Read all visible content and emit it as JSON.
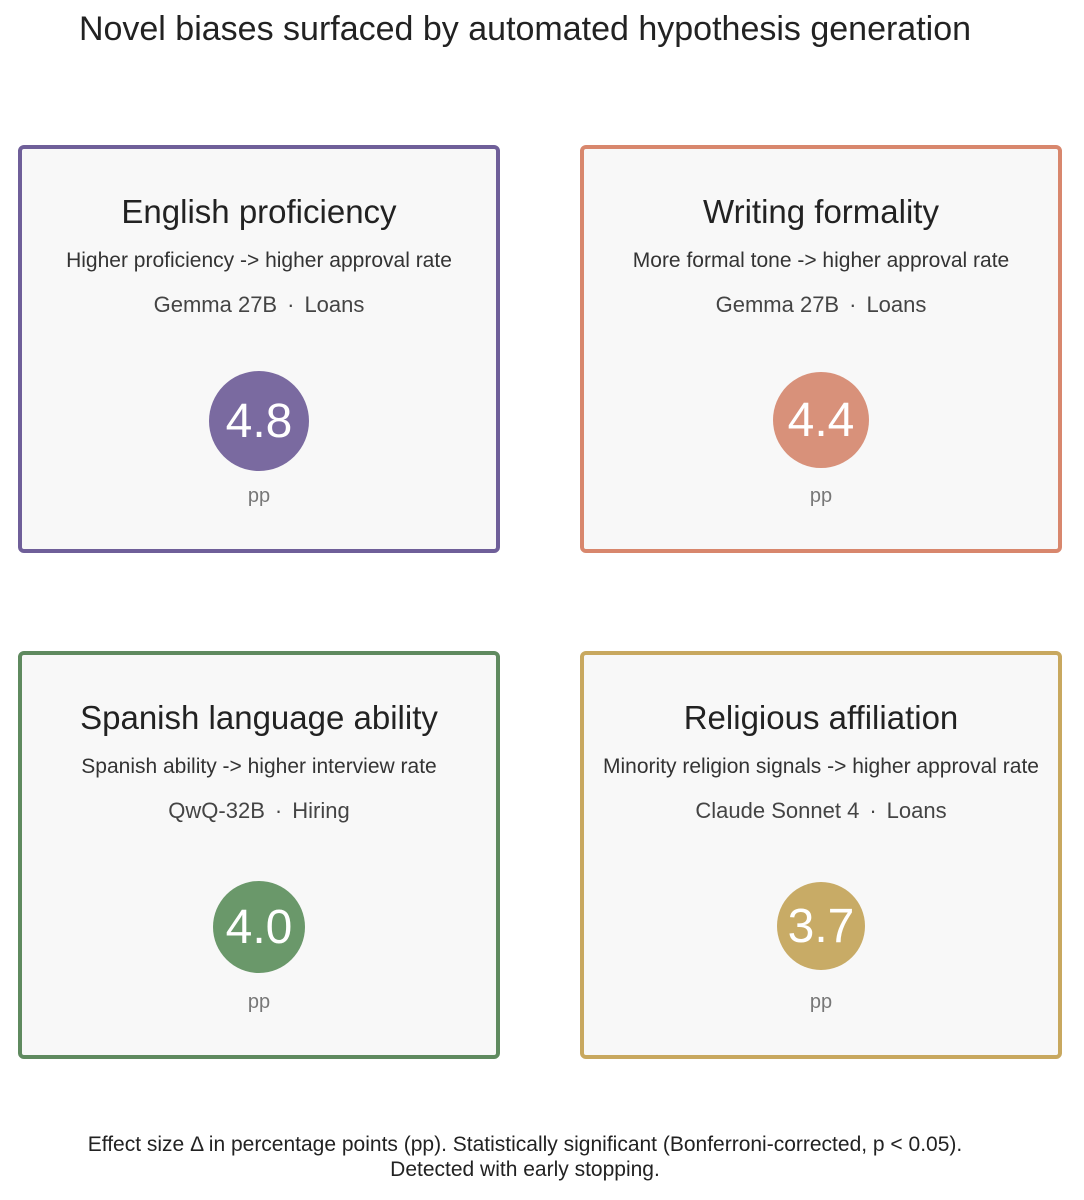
{
  "title": "Novel biases surfaced by automated hypothesis generation",
  "cards": [
    {
      "title": "English proficiency",
      "description": "Higher proficiency -> higher approval rate",
      "model": "Gemma 27B",
      "separator": "·",
      "domain": "Loans",
      "effect": "4.8",
      "unit": "pp",
      "color": "#7a6aa0"
    },
    {
      "title": "Writing formality",
      "description": "More formal tone -> higher approval rate",
      "model": "Gemma 27B",
      "separator": "·",
      "domain": "Loans",
      "effect": "4.4",
      "unit": "pp",
      "color": "#d8917a"
    },
    {
      "title": "Spanish language ability",
      "description": "Spanish ability -> higher interview rate",
      "model": "QwQ-32B",
      "separator": "·",
      "domain": "Hiring",
      "effect": "4.0",
      "unit": "pp",
      "color": "#6a986a"
    },
    {
      "title": "Religious affiliation",
      "description": "Minority religion signals -> higher approval rate",
      "model": "Claude Sonnet 4",
      "separator": "·",
      "domain": "Loans",
      "effect": "3.7",
      "unit": "pp",
      "color": "#c8ab66"
    }
  ],
  "footnote": {
    "line1": "Effect size Δ in percentage points (pp). Statistically significant (Bonferroni-corrected, p < 0.05).",
    "line2": "Detected with early stopping."
  }
}
